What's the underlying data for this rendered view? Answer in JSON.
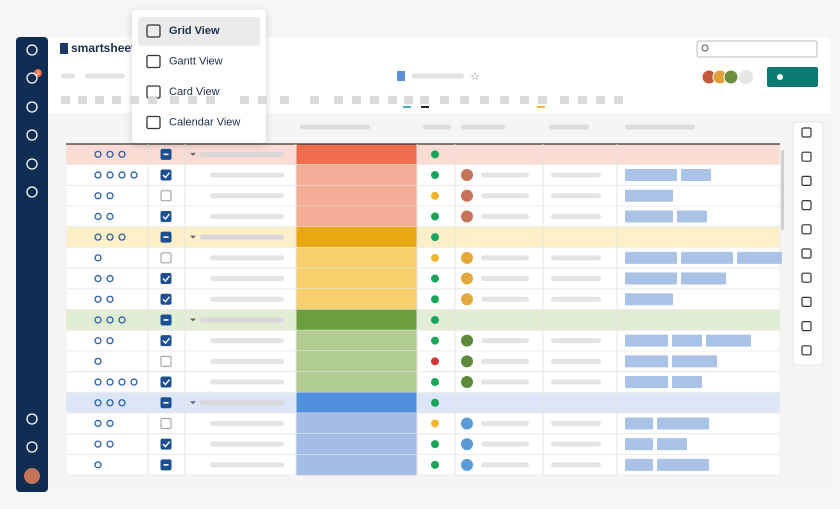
{
  "header": {
    "logo": "smartsheet",
    "notification_count": "3"
  },
  "view_menu": {
    "items": [
      "Grid View",
      "Gantt View",
      "Card View",
      "Calendar View"
    ]
  }
}
